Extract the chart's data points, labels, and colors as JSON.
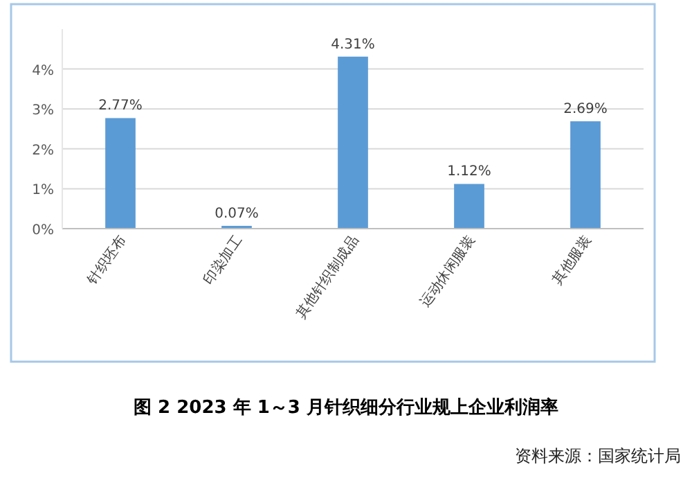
{
  "chart_data": {
    "type": "bar",
    "title": "图 2   2023 年 1～3 月针织细分行业规上企业利润率",
    "annotations": [
      "资料来源：国家统计局"
    ],
    "categories": [
      "针织坯布",
      "印染加工",
      "其他针织制成品",
      "运动休闲服装",
      "其他服装"
    ],
    "values": [
      2.77,
      0.07,
      4.31,
      1.12,
      2.69
    ],
    "value_labels": [
      "2.77%",
      "0.07%",
      "4.31%",
      "1.12%",
      "2.69%"
    ],
    "color": "#5b9bd5",
    "ylim": [
      0,
      5
    ],
    "yticks": [
      {
        "value": 0,
        "label": "0%"
      },
      {
        "value": 1,
        "label": "1%"
      },
      {
        "value": 2,
        "label": "2%"
      },
      {
        "value": 3,
        "label": "3%"
      },
      {
        "value": 4,
        "label": "4%"
      }
    ],
    "grid": "y"
  }
}
